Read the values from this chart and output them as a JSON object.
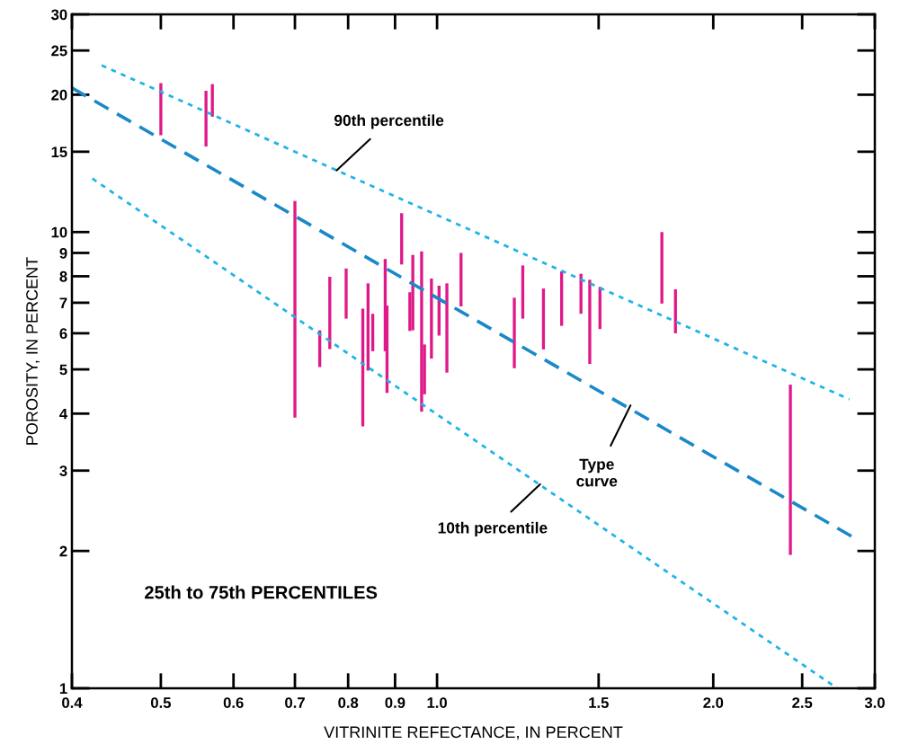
{
  "chart_data": {
    "type": "bar",
    "xlabel": "VITRINITE REFECTANCE, IN PERCENT",
    "ylabel": "POROSITY, IN PERCENT",
    "log": "xy",
    "grid": false,
    "legend": false,
    "xlim": [
      0.4,
      3.0
    ],
    "ylim": [
      1,
      30
    ],
    "xticks": [
      0.4,
      0.5,
      0.6,
      0.7,
      0.8,
      0.9,
      {
        "value": 1,
        "label": "1.0"
      },
      1.5,
      {
        "value": 2,
        "label": "2.0"
      },
      2.5,
      {
        "value": 3,
        "label": "3.0"
      }
    ],
    "yticks": [
      1,
      2,
      3,
      4,
      5,
      6,
      7,
      8,
      9,
      10,
      15,
      20,
      25,
      30
    ],
    "series": [
      {
        "color": "#e0198a",
        "x": [
          0.5,
          0.56,
          0.569,
          0.7,
          0.745,
          0.764,
          0.796,
          0.83,
          0.841,
          0.851,
          0.878,
          0.882,
          0.915,
          0.934,
          0.941,
          0.962,
          0.969,
          0.986,
          1.005,
          1.025,
          1.062,
          1.214,
          1.24,
          1.306,
          1.367,
          1.435,
          1.467,
          1.505,
          1.758,
          1.819,
          2.427
        ],
        "base": [
          16.3,
          15.4,
          17.9,
          3.92,
          5.06,
          5.54,
          6.46,
          3.75,
          4.97,
          5.48,
          5.48,
          4.44,
          8.49,
          6.07,
          6.09,
          4.04,
          4.41,
          5.28,
          5.93,
          4.92,
          6.87,
          5.03,
          6.46,
          5.53,
          6.23,
          6.62,
          5.14,
          6.13,
          6.97,
          6.0,
          1.96
        ],
        "values": [
          4.9,
          5.0,
          3.2,
          7.78,
          1.03,
          2.44,
          1.86,
          3.04,
          2.75,
          1.14,
          3.25,
          2.46,
          2.51,
          1.31,
          2.82,
          5.03,
          1.26,
          2.63,
          1.7,
          2.8,
          2.13,
          2.15,
          1.99,
          1.99,
          1.97,
          1.48,
          2.72,
          1.45,
          3.03,
          1.49,
          2.67
        ]
      },
      {
        "type": "line",
        "color": "#1eb4e6",
        "line_style": "dotted",
        "x": [
          0.431,
          2.814
        ],
        "values": [
          23.2,
          4.3
        ]
      },
      {
        "type": "line",
        "color": "#1a88c9",
        "line_style": "dashed",
        "x": [
          0.4,
          2.846
        ],
        "values": [
          20.7,
          2.14
        ]
      },
      {
        "type": "line",
        "color": "#1eb4e6",
        "line_style": "dotted",
        "x": [
          0.421,
          2.73
        ],
        "values": [
          13.1,
          1.0
        ]
      }
    ],
    "annotations": [
      {
        "text": "90th percentile",
        "x": 0.777,
        "y": 13.65
      },
      {
        "text": "Type\ncurve",
        "x": 1.625,
        "y": 4.17
      },
      {
        "text": "10th percentile",
        "x": 1.295,
        "y": 2.8
      },
      "25th to 75th PERCENTILES"
    ]
  }
}
